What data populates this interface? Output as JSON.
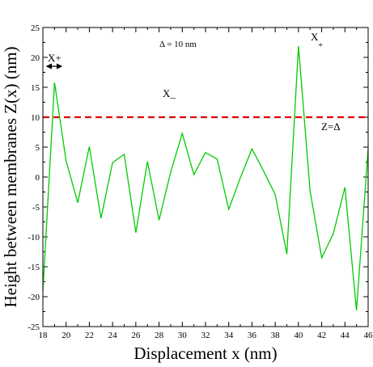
{
  "chart_data": {
    "type": "line",
    "title": "",
    "xlabel": "Displacement x (nm)",
    "ylabel": "Height between membranes Z(x) (nm)",
    "xlim": [
      18,
      46
    ],
    "ylim": [
      -25,
      25
    ],
    "x_ticks": [
      18,
      20,
      22,
      24,
      26,
      28,
      30,
      32,
      34,
      36,
      38,
      40,
      42,
      44,
      46
    ],
    "y_ticks": [
      -25,
      -20,
      -15,
      -10,
      -5,
      0,
      5,
      10,
      15,
      20,
      25
    ],
    "grid": false,
    "series": [
      {
        "color": "#00cc00",
        "x": [
          18,
          19,
          20,
          21,
          22,
          23,
          24,
          25,
          26,
          27,
          28,
          29,
          30,
          31,
          32,
          33,
          34,
          35,
          36,
          37,
          38,
          39,
          40,
          41,
          42,
          43,
          44,
          45,
          46
        ],
        "y": [
          -19,
          15.8,
          2.7,
          -4.3,
          5.1,
          -6.9,
          2.4,
          3.8,
          -9.3,
          2.6,
          -7.2,
          0.8,
          7.3,
          0.4,
          4.1,
          3.0,
          -5.4,
          -0.1,
          4.7,
          1.0,
          -2.9,
          -12.9,
          21.9,
          -2.3,
          -13.5,
          -9.5,
          -1.7,
          -22.3,
          4.7
        ]
      }
    ],
    "reference_lines": [
      {
        "y": 10,
        "color": "#dd0000",
        "style": "dashed"
      }
    ],
    "annotations": {
      "delta": "Δ = 10 nm",
      "x_plus_left": "X+",
      "x_plus_right": "X",
      "x_plus_right_sub": "+",
      "x_minus": "X_",
      "z_delta": "Z=Δ"
    }
  }
}
